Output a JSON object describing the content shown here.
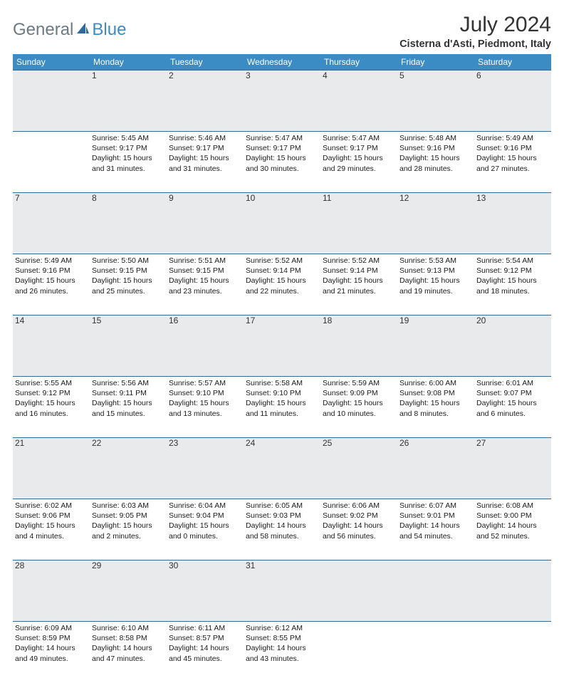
{
  "logo": {
    "general": "General",
    "blue": "Blue"
  },
  "title": "July 2024",
  "location": "Cisterna d'Asti, Piedmont, Italy",
  "weekdays": [
    "Sunday",
    "Monday",
    "Tuesday",
    "Wednesday",
    "Thursday",
    "Friday",
    "Saturday"
  ],
  "colors": {
    "header_bg": "#3b8bc4",
    "header_text": "#ffffff",
    "daynum_bg": "#e9eaeb",
    "border": "#3b6a8f",
    "logo_gray": "#6b7a86",
    "logo_blue": "#3b8bc4",
    "text": "#1a1a1a"
  },
  "first_weekday_index": 1,
  "days": [
    {
      "n": 1,
      "sunrise": "5:45 AM",
      "sunset": "9:17 PM",
      "daylight": "15 hours and 31 minutes."
    },
    {
      "n": 2,
      "sunrise": "5:46 AM",
      "sunset": "9:17 PM",
      "daylight": "15 hours and 31 minutes."
    },
    {
      "n": 3,
      "sunrise": "5:47 AM",
      "sunset": "9:17 PM",
      "daylight": "15 hours and 30 minutes."
    },
    {
      "n": 4,
      "sunrise": "5:47 AM",
      "sunset": "9:17 PM",
      "daylight": "15 hours and 29 minutes."
    },
    {
      "n": 5,
      "sunrise": "5:48 AM",
      "sunset": "9:16 PM",
      "daylight": "15 hours and 28 minutes."
    },
    {
      "n": 6,
      "sunrise": "5:49 AM",
      "sunset": "9:16 PM",
      "daylight": "15 hours and 27 minutes."
    },
    {
      "n": 7,
      "sunrise": "5:49 AM",
      "sunset": "9:16 PM",
      "daylight": "15 hours and 26 minutes."
    },
    {
      "n": 8,
      "sunrise": "5:50 AM",
      "sunset": "9:15 PM",
      "daylight": "15 hours and 25 minutes."
    },
    {
      "n": 9,
      "sunrise": "5:51 AM",
      "sunset": "9:15 PM",
      "daylight": "15 hours and 23 minutes."
    },
    {
      "n": 10,
      "sunrise": "5:52 AM",
      "sunset": "9:14 PM",
      "daylight": "15 hours and 22 minutes."
    },
    {
      "n": 11,
      "sunrise": "5:52 AM",
      "sunset": "9:14 PM",
      "daylight": "15 hours and 21 minutes."
    },
    {
      "n": 12,
      "sunrise": "5:53 AM",
      "sunset": "9:13 PM",
      "daylight": "15 hours and 19 minutes."
    },
    {
      "n": 13,
      "sunrise": "5:54 AM",
      "sunset": "9:12 PM",
      "daylight": "15 hours and 18 minutes."
    },
    {
      "n": 14,
      "sunrise": "5:55 AM",
      "sunset": "9:12 PM",
      "daylight": "15 hours and 16 minutes."
    },
    {
      "n": 15,
      "sunrise": "5:56 AM",
      "sunset": "9:11 PM",
      "daylight": "15 hours and 15 minutes."
    },
    {
      "n": 16,
      "sunrise": "5:57 AM",
      "sunset": "9:10 PM",
      "daylight": "15 hours and 13 minutes."
    },
    {
      "n": 17,
      "sunrise": "5:58 AM",
      "sunset": "9:10 PM",
      "daylight": "15 hours and 11 minutes."
    },
    {
      "n": 18,
      "sunrise": "5:59 AM",
      "sunset": "9:09 PM",
      "daylight": "15 hours and 10 minutes."
    },
    {
      "n": 19,
      "sunrise": "6:00 AM",
      "sunset": "9:08 PM",
      "daylight": "15 hours and 8 minutes."
    },
    {
      "n": 20,
      "sunrise": "6:01 AM",
      "sunset": "9:07 PM",
      "daylight": "15 hours and 6 minutes."
    },
    {
      "n": 21,
      "sunrise": "6:02 AM",
      "sunset": "9:06 PM",
      "daylight": "15 hours and 4 minutes."
    },
    {
      "n": 22,
      "sunrise": "6:03 AM",
      "sunset": "9:05 PM",
      "daylight": "15 hours and 2 minutes."
    },
    {
      "n": 23,
      "sunrise": "6:04 AM",
      "sunset": "9:04 PM",
      "daylight": "15 hours and 0 minutes."
    },
    {
      "n": 24,
      "sunrise": "6:05 AM",
      "sunset": "9:03 PM",
      "daylight": "14 hours and 58 minutes."
    },
    {
      "n": 25,
      "sunrise": "6:06 AM",
      "sunset": "9:02 PM",
      "daylight": "14 hours and 56 minutes."
    },
    {
      "n": 26,
      "sunrise": "6:07 AM",
      "sunset": "9:01 PM",
      "daylight": "14 hours and 54 minutes."
    },
    {
      "n": 27,
      "sunrise": "6:08 AM",
      "sunset": "9:00 PM",
      "daylight": "14 hours and 52 minutes."
    },
    {
      "n": 28,
      "sunrise": "6:09 AM",
      "sunset": "8:59 PM",
      "daylight": "14 hours and 49 minutes."
    },
    {
      "n": 29,
      "sunrise": "6:10 AM",
      "sunset": "8:58 PM",
      "daylight": "14 hours and 47 minutes."
    },
    {
      "n": 30,
      "sunrise": "6:11 AM",
      "sunset": "8:57 PM",
      "daylight": "14 hours and 45 minutes."
    },
    {
      "n": 31,
      "sunrise": "6:12 AM",
      "sunset": "8:55 PM",
      "daylight": "14 hours and 43 minutes."
    }
  ],
  "labels": {
    "sunrise": "Sunrise:",
    "sunset": "Sunset:",
    "daylight": "Daylight:"
  }
}
